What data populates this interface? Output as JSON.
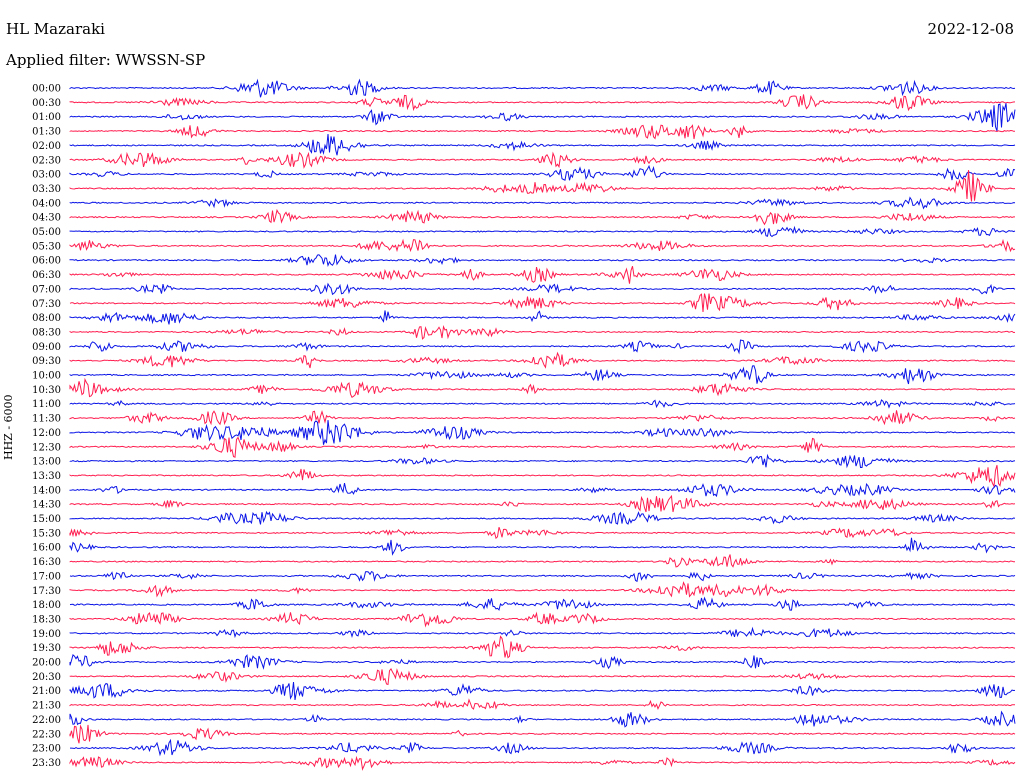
{
  "header": {
    "station": "HL Mazaraki",
    "date": "2022-12-08",
    "filter_label": "Applied filter: WWSSN-SP"
  },
  "channel_label": "HHZ - 6000",
  "colors": {
    "blue": "#0a14e6",
    "red": "#ff1e50"
  },
  "chart_data": {
    "type": "line",
    "title": "",
    "xlabel": "",
    "ylabel": "HHZ - 6000",
    "row_labels": [
      "00:00",
      "00:30",
      "01:00",
      "01:30",
      "02:00",
      "02:30",
      "03:00",
      "03:30",
      "04:00",
      "04:30",
      "05:00",
      "05:30",
      "06:00",
      "06:30",
      "07:00",
      "07:30",
      "08:00",
      "08:30",
      "09:00",
      "09:30",
      "10:00",
      "10:30",
      "11:00",
      "11:30",
      "12:00",
      "12:30",
      "13:00",
      "13:30",
      "14:00",
      "14:30",
      "15:00",
      "15:30",
      "16:00",
      "16:30",
      "17:00",
      "17:30",
      "18:00",
      "18:30",
      "19:00",
      "19:30",
      "20:00",
      "20:30",
      "21:00",
      "21:30",
      "22:00",
      "22:30",
      "23:00",
      "23:30"
    ],
    "row_colors": [
      "blue",
      "red"
    ],
    "grid": false,
    "legend": "none"
  }
}
